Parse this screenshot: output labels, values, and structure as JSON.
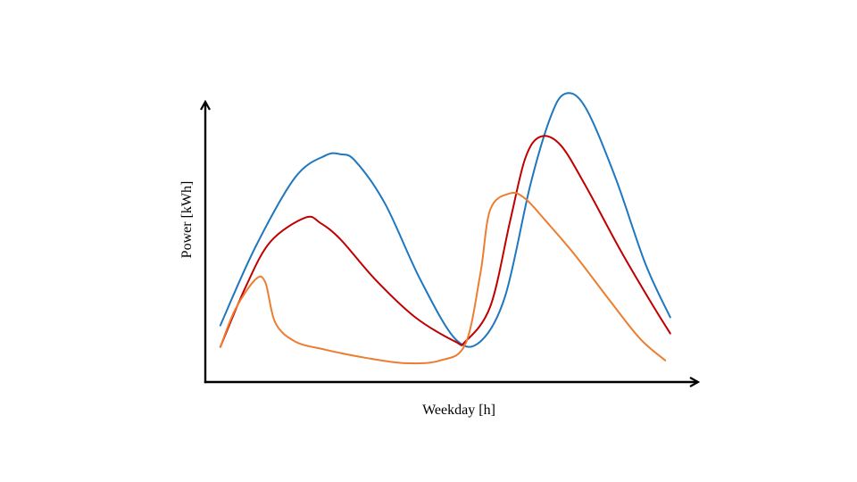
{
  "chart_data": {
    "type": "line",
    "title": "",
    "xlabel": "Weekday [h]",
    "ylabel": "Power [kWh]",
    "xlim": [
      0,
      1
    ],
    "ylim": [
      0,
      1
    ],
    "grid": false,
    "legend": "none",
    "ticks": "none",
    "series": [
      {
        "color": "#1f77c0",
        "x": [
          0.03,
          0.1,
          0.18,
          0.24,
          0.27,
          0.3,
          0.36,
          0.43,
          0.5,
          0.55,
          0.6,
          0.65,
          0.69,
          0.72,
          0.76,
          0.82,
          0.88,
          0.93
        ],
        "y": [
          0.21,
          0.5,
          0.76,
          0.84,
          0.845,
          0.82,
          0.66,
          0.38,
          0.16,
          0.15,
          0.32,
          0.73,
          0.98,
          1.07,
          1.02,
          0.76,
          0.44,
          0.24
        ]
      },
      {
        "color": "#c00000",
        "x": [
          0.03,
          0.08,
          0.13,
          0.2,
          0.23,
          0.27,
          0.34,
          0.42,
          0.5,
          0.52,
          0.57,
          0.61,
          0.64,
          0.67,
          0.71,
          0.76,
          0.83,
          0.89,
          0.93
        ],
        "y": [
          0.13,
          0.35,
          0.52,
          0.61,
          0.59,
          0.53,
          0.38,
          0.24,
          0.15,
          0.15,
          0.28,
          0.6,
          0.83,
          0.91,
          0.88,
          0.73,
          0.49,
          0.3,
          0.18
        ]
      },
      {
        "color": "#ed7d31",
        "x": [
          0.03,
          0.06,
          0.1,
          0.12,
          0.14,
          0.18,
          0.24,
          0.32,
          0.4,
          0.47,
          0.52,
          0.55,
          0.57,
          0.61,
          0.64,
          0.68,
          0.74,
          0.81,
          0.87,
          0.92
        ],
        "y": [
          0.13,
          0.27,
          0.38,
          0.37,
          0.22,
          0.15,
          0.12,
          0.09,
          0.07,
          0.08,
          0.14,
          0.4,
          0.64,
          0.7,
          0.68,
          0.6,
          0.47,
          0.3,
          0.16,
          0.08
        ]
      }
    ]
  }
}
